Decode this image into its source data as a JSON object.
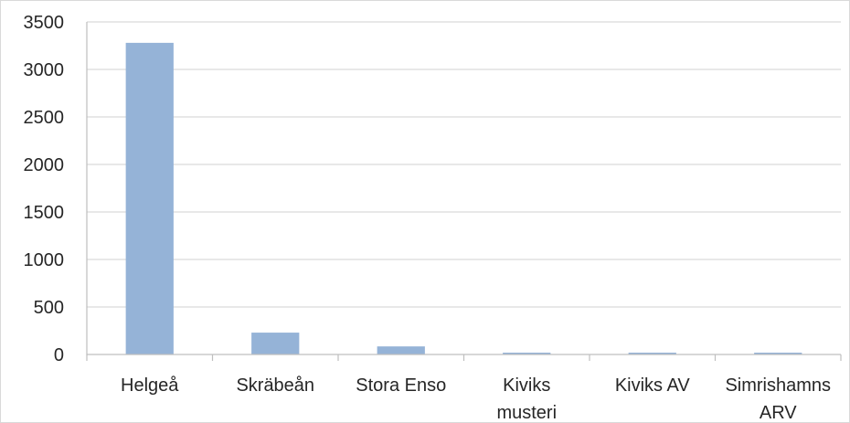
{
  "chart_data": {
    "type": "bar",
    "categories": [
      [
        "Helgeå"
      ],
      [
        "Skräbeån"
      ],
      [
        "Stora Enso"
      ],
      [
        "Kiviks",
        "musteri"
      ],
      [
        "Kiviks AV"
      ],
      [
        "Simrishamns",
        "ARV"
      ]
    ],
    "values": [
      3280,
      230,
      85,
      12,
      10,
      12
    ],
    "title": "",
    "xlabel": "",
    "ylabel": "",
    "ylim": [
      0,
      3500
    ],
    "yticks": [
      0,
      500,
      1000,
      1500,
      2000,
      2500,
      3000,
      3500
    ],
    "grid": true,
    "legend": "none",
    "bar_color": "#95b3d7",
    "grid_color": "#d9d9d9",
    "axis_color": "#bfbfbf"
  }
}
